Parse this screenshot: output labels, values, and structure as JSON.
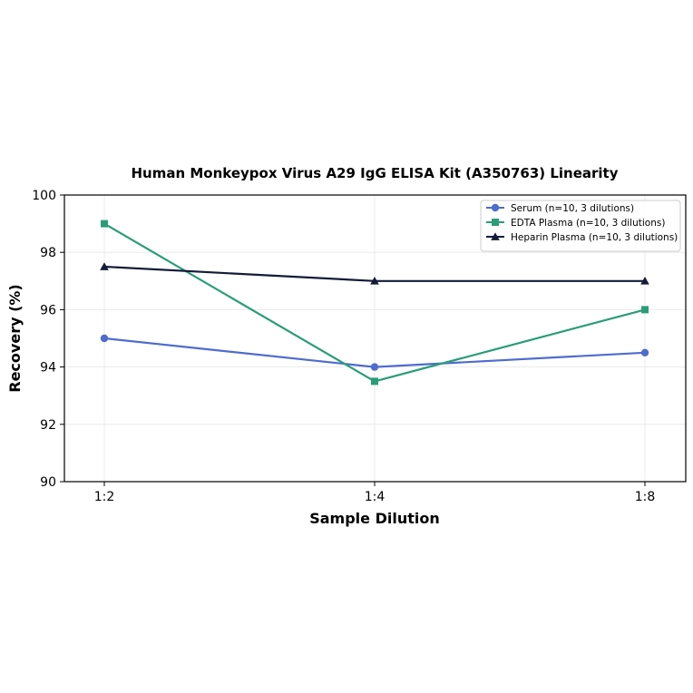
{
  "chart_data": {
    "type": "line",
    "title": "Human Monkeypox Virus A29 IgG ELISA Kit (A350763) Linearity",
    "xlabel": "Sample Dilution",
    "ylabel": "Recovery (%)",
    "categories": [
      "1:2",
      "1:4",
      "1:8"
    ],
    "ylim": [
      90,
      100
    ],
    "yticks": [
      90,
      92,
      94,
      96,
      98,
      100
    ],
    "grid": true,
    "legend_position": "top-right",
    "series": [
      {
        "name": "Serum (n=10, 3 dilutions)",
        "values": [
          95.0,
          94.0,
          94.5
        ],
        "color": "#4e6ccf",
        "marker": "circle"
      },
      {
        "name": "EDTA Plasma (n=10, 3 dilutions)",
        "values": [
          99.0,
          93.5,
          96.0
        ],
        "color": "#2a9d78",
        "marker": "square"
      },
      {
        "name": "Heparin Plasma (n=10, 3 dilutions)",
        "values": [
          97.5,
          97.0,
          97.0
        ],
        "color": "#141b38",
        "marker": "triangle"
      }
    ]
  }
}
